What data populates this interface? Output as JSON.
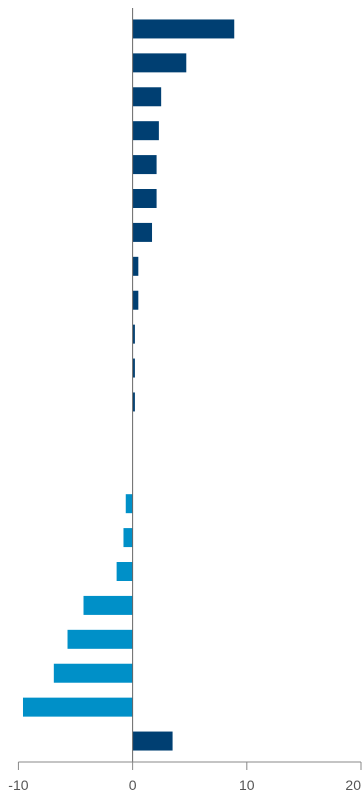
{
  "chart_data": {
    "type": "bar",
    "orientation": "horizontal",
    "title": "",
    "xlabel": "",
    "ylabel": "",
    "xlim": [
      -11,
      20
    ],
    "x_ticks": [
      -10,
      0,
      10,
      20
    ],
    "x_tick_labels": [
      "-10",
      "0",
      "10",
      "20"
    ],
    "grid": false,
    "legend": "none",
    "bars": [
      {
        "value": 8.9,
        "color": "#003f72"
      },
      {
        "value": 4.7,
        "color": "#003f72"
      },
      {
        "value": 2.5,
        "color": "#003f72"
      },
      {
        "value": 2.3,
        "color": "#003f72"
      },
      {
        "value": 2.1,
        "color": "#003f72"
      },
      {
        "value": 2.1,
        "color": "#003f72"
      },
      {
        "value": 1.7,
        "color": "#003f72"
      },
      {
        "value": 0.5,
        "color": "#003f72"
      },
      {
        "value": 0.5,
        "color": "#003f72"
      },
      {
        "value": 0.2,
        "color": "#003f72"
      },
      {
        "value": 0.2,
        "color": "#003f72"
      },
      {
        "value": 0.2,
        "color": "#003f72"
      },
      {
        "value": 0.0,
        "color": "#003f72"
      },
      {
        "value": 0.0,
        "color": "#003f72"
      },
      {
        "value": -0.6,
        "color": "#0090c8"
      },
      {
        "value": -0.8,
        "color": "#0090c8"
      },
      {
        "value": -1.4,
        "color": "#0090c8"
      },
      {
        "value": -4.3,
        "color": "#0090c8"
      },
      {
        "value": -5.7,
        "color": "#0090c8"
      },
      {
        "value": -6.9,
        "color": "#0090c8"
      },
      {
        "value": -9.6,
        "color": "#0090c8"
      },
      {
        "value": 3.5,
        "color": "#003f72"
      }
    ]
  }
}
